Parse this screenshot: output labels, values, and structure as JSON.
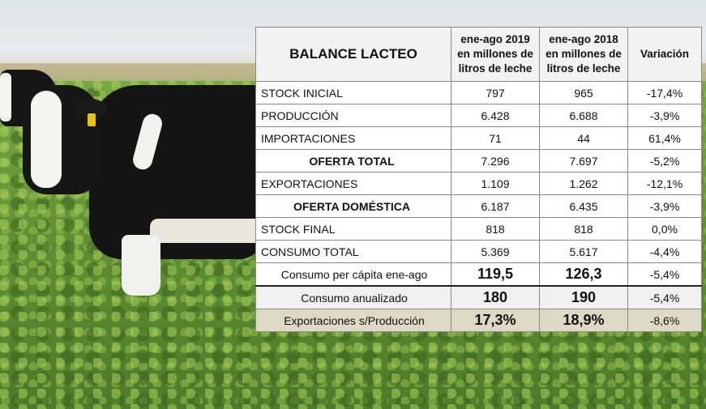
{
  "table": {
    "title": "BALANCE LACTEO",
    "col_2019": [
      "ene-ago 2019",
      "en millones de",
      "litros de leche"
    ],
    "col_2018": [
      "ene-ago 2018",
      "en millones de",
      "litros de leche"
    ],
    "col_var": "Variación",
    "rows": [
      {
        "label": "STOCK INICIAL",
        "v2019": "797",
        "v2018": "965",
        "var": "-17,4%"
      },
      {
        "label": "PRODUCCIÓN",
        "v2019": "6.428",
        "v2018": "6.688",
        "var": "-3,9%"
      },
      {
        "label": "IMPORTACIONES",
        "v2019": "71",
        "v2018": "44",
        "var": "61,4%"
      },
      {
        "label": "OFERTA TOTAL",
        "v2019": "7.296",
        "v2018": "7.697",
        "var": "-5,2%"
      },
      {
        "label": "EXPORTACIONES",
        "v2019": "1.109",
        "v2018": "1.262",
        "var": "-12,1%"
      },
      {
        "label": "OFERTA DOMÉSTICA",
        "v2019": "6.187",
        "v2018": "6.435",
        "var": "-3,9%"
      },
      {
        "label": "STOCK FINAL",
        "v2019": "818",
        "v2018": "818",
        "var": "0,0%"
      },
      {
        "label": "CONSUMO TOTAL",
        "v2019": "5.369",
        "v2018": "5.617",
        "var": "-4,4%"
      },
      {
        "label": "Consumo per cápita ene-ago",
        "v2019": "119,5",
        "v2018": "126,3",
        "var": "-5,4%"
      },
      {
        "label": "Consumo anualizado",
        "v2019": "180",
        "v2018": "190",
        "var": "-5,4%"
      },
      {
        "label": "Exportaciones s/Producción",
        "v2019": "17,3%",
        "v2018": "18,9%",
        "var": "-8,6%"
      }
    ]
  }
}
